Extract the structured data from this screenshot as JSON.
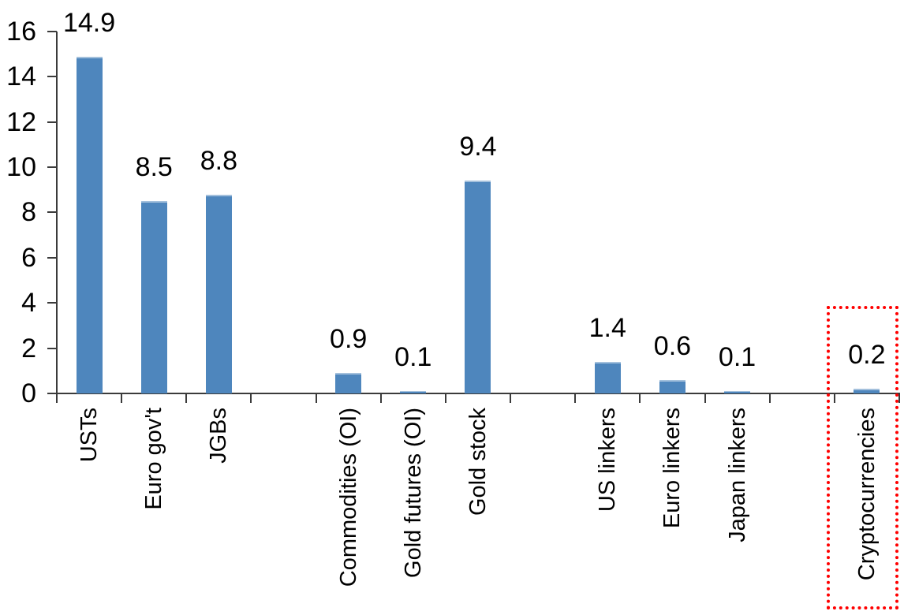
{
  "chart_data": {
    "type": "bar",
    "title": "",
    "xlabel": "",
    "ylabel": "",
    "categories": [
      "USTs",
      "Euro gov't",
      "JGBs",
      "Commodities (OI)",
      "Gold futures (OI)",
      "Gold stock",
      "US linkers",
      "Euro linkers",
      "Japan linkers",
      "Cryptocurrencies"
    ],
    "values": [
      14.9,
      8.5,
      8.8,
      0.9,
      0.1,
      9.4,
      1.4,
      0.6,
      0.1,
      0.2
    ],
    "data_labels": [
      "14.9",
      "8.5",
      "8.8",
      "0.9",
      "0.1",
      "9.4",
      "1.4",
      "0.6",
      "0.1",
      "0.2"
    ],
    "group_gaps_after_indices": [
      2,
      5,
      8
    ],
    "yticks": [
      "0",
      "2",
      "4",
      "6",
      "8",
      "10",
      "12",
      "14",
      "16"
    ],
    "ylim": [
      0,
      16
    ],
    "ytick_step": 2,
    "grid": false,
    "legend": false,
    "bar_color": "#4e86bd",
    "bar_top_highlight_color": "#a3c0dc",
    "axis_color": "#3b3b3b",
    "text_color": "#000000",
    "highlight": {
      "category": "Cryptocurrencies",
      "box_color": "#ff0000",
      "box_style": "dotted"
    }
  }
}
